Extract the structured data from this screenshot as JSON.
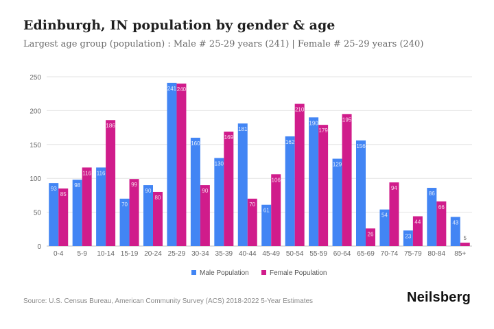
{
  "header": {
    "title": "Edinburgh, IN population by gender & age",
    "subtitle": "Largest age group (population) : Male # 25-29 years (241) | Female # 25-29 years (240)"
  },
  "footer": {
    "source": "Source: U.S. Census Bureau, American Community Survey (ACS) 2018-2022 5-Year Estimates",
    "brand": "Neilsberg"
  },
  "colors": {
    "male": "#4285f4",
    "female": "#d01c8b"
  },
  "chart_data": {
    "type": "bar",
    "categories": [
      "0-4",
      "5-9",
      "10-14",
      "15-19",
      "20-24",
      "25-29",
      "30-34",
      "35-39",
      "40-44",
      "45-49",
      "50-54",
      "55-59",
      "60-64",
      "65-69",
      "70-74",
      "75-79",
      "80-84",
      "85+"
    ],
    "series": [
      {
        "name": "Male Population",
        "color": "#4285f4",
        "values": [
          93,
          98,
          116,
          70,
          90,
          241,
          160,
          130,
          181,
          61,
          162,
          190,
          129,
          156,
          54,
          23,
          86,
          43
        ]
      },
      {
        "name": "Female Population",
        "color": "#d01c8b",
        "values": [
          85,
          116,
          186,
          99,
          80,
          240,
          90,
          169,
          70,
          106,
          210,
          179,
          195,
          26,
          94,
          44,
          66,
          5
        ]
      }
    ],
    "ylim": [
      0,
      250
    ],
    "yticks": [
      0,
      50,
      100,
      150,
      200,
      250
    ],
    "grid": true,
    "legend": "bottom",
    "xlabel": "",
    "ylabel": ""
  }
}
